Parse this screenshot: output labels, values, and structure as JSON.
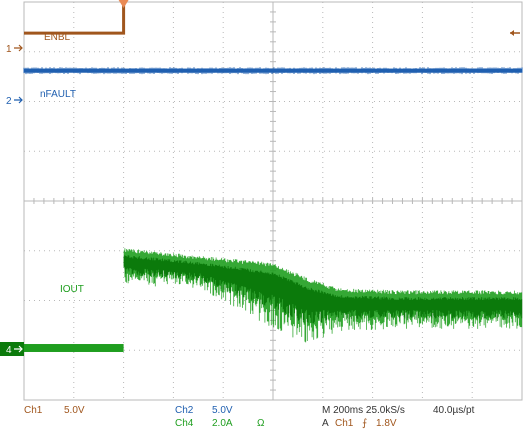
{
  "chart_data": {
    "type": "line",
    "instrument": "oscilloscope",
    "grid": "on",
    "divisions": {
      "x": 10,
      "y": 8
    },
    "colors": {
      "ch1": "#a0561d",
      "ch2": "#1f5fb0",
      "ch4": "#1f9e1f",
      "ch4_dark": "#0b7a0b",
      "grid": "#b8b8b8",
      "trigger": "#e98a55"
    },
    "series": [
      {
        "name": "ENBL",
        "channel": "1",
        "color": "#a0561d",
        "x_div": [
          0,
          2,
          2,
          10
        ],
        "y_div": [
          0.3,
          0.3,
          1.68,
          1.68
        ]
      },
      {
        "name": "nFAULT",
        "channel": "2",
        "color": "#1f5fb0",
        "x_div": [
          0,
          10
        ],
        "y_div": [
          0.59,
          0.59
        ]
      },
      {
        "name": "IOUT",
        "channel": "4",
        "color": "#1f9e1f",
        "x_div": [
          0,
          2,
          2,
          3.5,
          5.0,
          5.7,
          6.3,
          7.5,
          10
        ],
        "envelope_high_div": [
          0.1,
          0.1,
          1.95,
          1.8,
          1.65,
          1.35,
          1.15,
          1.1,
          1.1
        ],
        "envelope_low_div": [
          -0.06,
          -0.06,
          1.3,
          1.2,
          0.4,
          0.1,
          0.35,
          0.4,
          0.4
        ]
      }
    ],
    "annotations": {
      "ch1_label": "ENBL",
      "ch2_label": "nFAULT",
      "ch4_label": "IOUT",
      "marker_1": "1",
      "marker_2": "2",
      "marker_4": "4"
    },
    "status": {
      "ch1": "Ch1",
      "ch1_scale": "5.0V",
      "ch2": "Ch2",
      "ch2_scale": "5.0V",
      "ch4": "Ch4",
      "ch4_scale": "2.0A",
      "ch4_coupling": "Ω",
      "timebase": "M 200ms 25.0kS/s",
      "sample_interval": "40.0µs/pt",
      "trigger": "A",
      "trigger_source": "Ch1",
      "trigger_slope": "⨍",
      "trigger_level": "1.8V"
    }
  }
}
